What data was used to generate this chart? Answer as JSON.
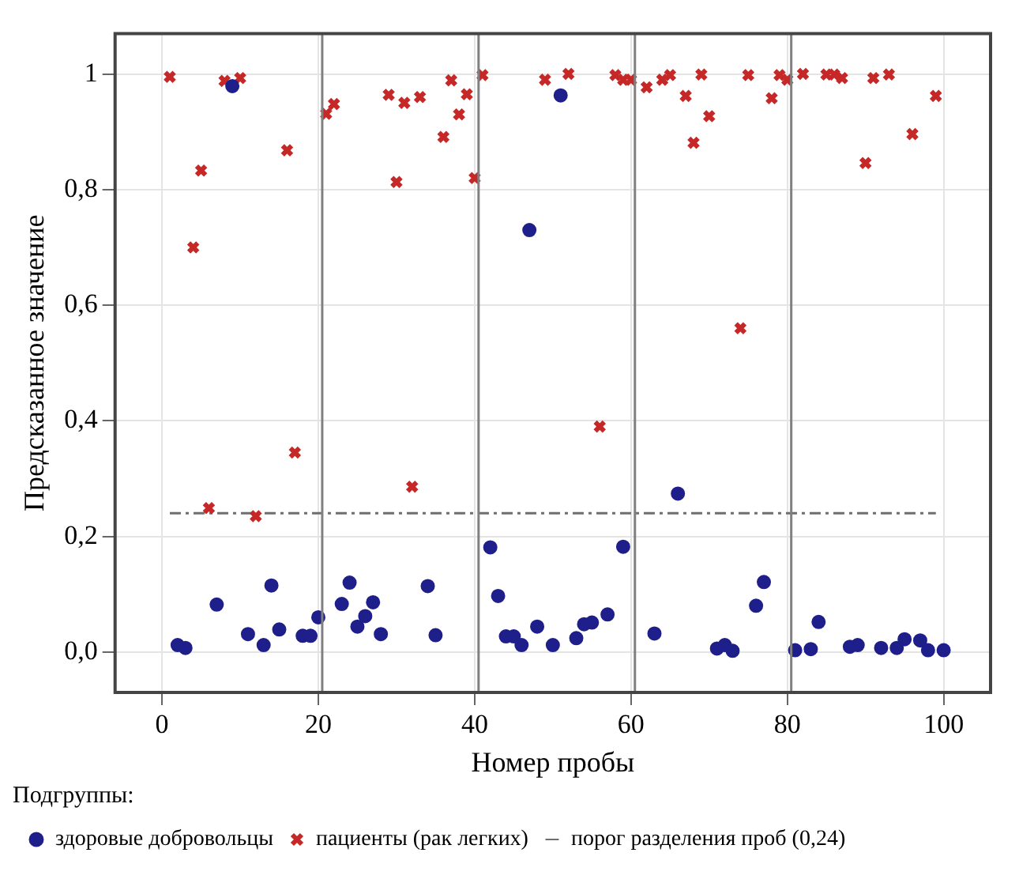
{
  "chart_data": {
    "type": "scatter",
    "xlabel": "Номер пробы",
    "ylabel": "Предсказанное значение",
    "legend_title": "Подгруппы:",
    "xlim": [
      -6,
      106
    ],
    "ylim": [
      -0.07,
      1.07
    ],
    "xticks": [
      0,
      20,
      40,
      60,
      80,
      100
    ],
    "yticks": [
      {
        "value": 0,
        "label": "0,0"
      },
      {
        "value": 0.2,
        "label": "0,2"
      },
      {
        "value": 0.4,
        "label": "0,4"
      },
      {
        "value": 0.6,
        "label": "0,6"
      },
      {
        "value": 0.8,
        "label": "0,8"
      },
      1
    ],
    "grid": true,
    "legend": "bottom",
    "ref_lines": [
      {
        "axis": "x",
        "value": 20.5,
        "color": "#808080"
      },
      {
        "axis": "x",
        "value": 40.5,
        "color": "#808080"
      },
      {
        "axis": "x",
        "value": 60.5,
        "color": "#808080"
      },
      {
        "axis": "x",
        "value": 80.5,
        "color": "#808080"
      }
    ],
    "series": [
      {
        "name": "здоровые добровольцы",
        "color": "#1f1f8c",
        "marker": "circle",
        "x": [
          2,
          3,
          7,
          9,
          11,
          13,
          14,
          15,
          18,
          19,
          20,
          23,
          24,
          25,
          26,
          27,
          28,
          34,
          35,
          42,
          43,
          44,
          45,
          46,
          47,
          48,
          50,
          51,
          53,
          54,
          55,
          57,
          59,
          63,
          66,
          71,
          72,
          73,
          76,
          77,
          81,
          83,
          84,
          88,
          89,
          92,
          94,
          95,
          97,
          98,
          100
        ],
        "values": [
          0.012,
          0.007,
          0.082,
          0.979,
          0.031,
          0.012,
          0.115,
          0.039,
          0.028,
          0.028,
          0.06,
          0.083,
          0.12,
          0.044,
          0.062,
          0.086,
          0.031,
          0.114,
          0.029,
          0.181,
          0.097,
          0.027,
          0.027,
          0.012,
          0.73,
          0.044,
          0.012,
          0.963,
          0.024,
          0.048,
          0.051,
          0.065,
          0.182,
          0.032,
          0.274,
          0.006,
          0.012,
          0.002,
          0.08,
          0.121,
          0.003,
          0.005,
          0.052,
          0.009,
          0.012,
          0.007,
          0.007,
          0.022,
          0.02,
          0.003,
          0.003
        ]
      },
      {
        "name": "пациенты (рак легких)",
        "color": "#c62828",
        "marker": "cross",
        "x": [
          1,
          4,
          5,
          6,
          8,
          10,
          12,
          16,
          17,
          21,
          22,
          29,
          30,
          31,
          32,
          33,
          36,
          37,
          38,
          39,
          40,
          41,
          49,
          52,
          56,
          58,
          59,
          60,
          62,
          64,
          65,
          67,
          68,
          69,
          70,
          74,
          75,
          78,
          79,
          80,
          82,
          85,
          86,
          87,
          90,
          91,
          93,
          96,
          99
        ],
        "values": [
          0.995,
          0.7,
          0.833,
          0.249,
          0.988,
          0.993,
          0.235,
          0.868,
          0.345,
          0.931,
          0.948,
          0.964,
          0.813,
          0.95,
          0.286,
          0.96,
          0.891,
          0.989,
          0.93,
          0.965,
          0.82,
          0.998,
          0.99,
          1.0,
          0.39,
          0.998,
          0.99,
          0.99,
          0.977,
          0.99,
          0.998,
          0.962,
          0.881,
          0.999,
          0.927,
          0.56,
          0.998,
          0.958,
          0.998,
          0.99,
          1.0,
          0.999,
          0.999,
          0.993,
          0.846,
          0.993,
          0.999,
          0.896,
          0.962
        ]
      },
      {
        "name": "порог разделения проб (0,24)",
        "type": "line",
        "color": "#6e6e6e",
        "line_style": "dashed",
        "marker": "none",
        "x": [
          1,
          99
        ],
        "values": [
          0.24,
          0.24
        ]
      }
    ]
  }
}
